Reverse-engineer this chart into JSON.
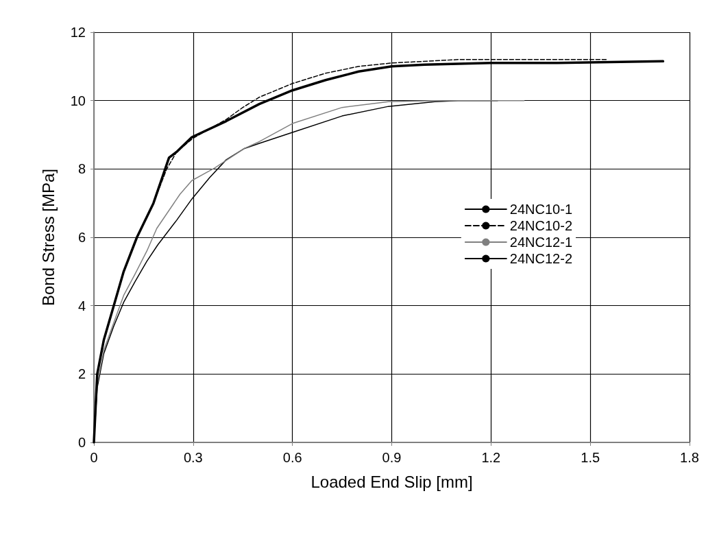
{
  "chart_data": {
    "type": "line",
    "xlabel": "Loaded End Slip [mm]",
    "ylabel": "Bond Stress [MPa]",
    "xlim": [
      0,
      1.8
    ],
    "xticks": [
      0,
      0.3,
      0.6,
      0.9,
      1.2,
      1.5,
      1.8
    ],
    "ylim": [
      0,
      12
    ],
    "yticks": [
      0,
      2,
      4,
      6,
      8,
      10,
      12
    ],
    "grid": true,
    "legend": "right",
    "marker": "none",
    "series": [
      {
        "name": "24NC10-1",
        "color": "#000000",
        "line_style": "solid",
        "x": [
          0,
          0.005,
          0.01,
          0.03,
          0.06,
          0.09,
          0.124,
          0.16,
          0.193,
          0.25,
          0.296,
          0.35,
          0.4,
          0.455,
          0.5,
          0.6,
          0.75,
          0.89,
          1.03,
          1.1,
          1.22
        ],
        "values": [
          0,
          0.8,
          1.6,
          2.6,
          3.4,
          4.1,
          4.7,
          5.3,
          5.78,
          6.5,
          7.12,
          7.75,
          8.27,
          8.6,
          8.75,
          9.07,
          9.55,
          9.83,
          9.97,
          10,
          10
        ]
      },
      {
        "name": "24NC10-2",
        "color": "#000000",
        "line_style": "dashed",
        "x": [
          0,
          0.005,
          0.01,
          0.03,
          0.06,
          0.09,
          0.13,
          0.18,
          0.22,
          0.25,
          0.3,
          0.4,
          0.45,
          0.5,
          0.6,
          0.7,
          0.8,
          0.9,
          1.1,
          1.3,
          1.55
        ],
        "values": [
          0,
          1,
          2,
          3,
          4,
          5,
          6,
          7,
          8,
          8.5,
          8.9,
          9.45,
          9.8,
          10.1,
          10.5,
          10.8,
          11,
          11.1,
          11.2,
          11.2,
          11.2
        ]
      },
      {
        "name": "24NC12-1",
        "color": "#808080",
        "line_style": "solid",
        "x": [
          0,
          0.005,
          0.01,
          0.03,
          0.06,
          0.09,
          0.124,
          0.16,
          0.19,
          0.26,
          0.296,
          0.365,
          0.455,
          0.5,
          0.6,
          0.75,
          0.89,
          1.03,
          1.15,
          1.3
        ],
        "values": [
          0,
          0.9,
          1.7,
          2.7,
          3.5,
          4.3,
          4.92,
          5.6,
          6.26,
          7.26,
          7.66,
          8.03,
          8.6,
          8.8,
          9.33,
          9.8,
          9.97,
          10,
          10,
          10
        ]
      },
      {
        "name": "24NC12-2",
        "color": "#000000",
        "line_style": "solid",
        "x": [
          0,
          0.005,
          0.01,
          0.03,
          0.06,
          0.09,
          0.13,
          0.18,
          0.227,
          0.25,
          0.296,
          0.4,
          0.5,
          0.6,
          0.7,
          0.8,
          0.9,
          1,
          1.2,
          1.4,
          1.72
        ],
        "values": [
          0,
          1,
          2,
          3,
          4,
          5,
          6,
          7,
          8.33,
          8.5,
          8.93,
          9.4,
          9.9,
          10.3,
          10.6,
          10.85,
          11,
          11.05,
          11.1,
          11.1,
          11.15
        ]
      }
    ]
  }
}
